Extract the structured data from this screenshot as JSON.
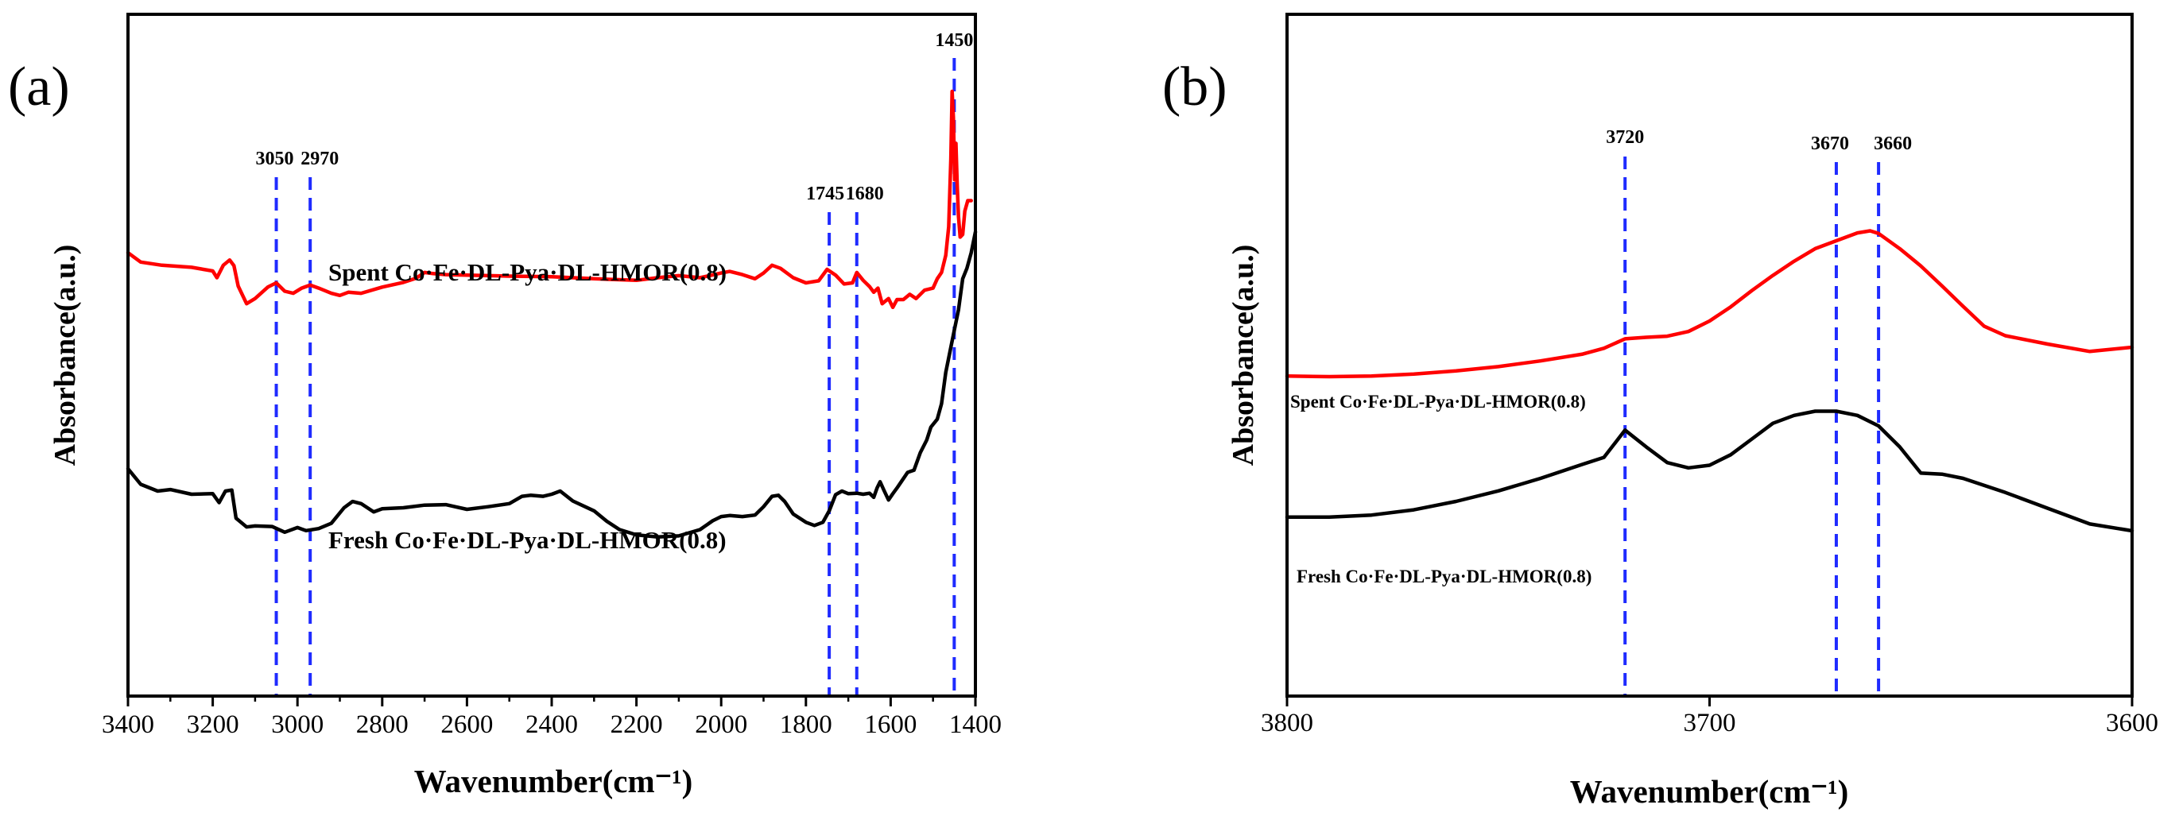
{
  "chart_data": [
    {
      "panel": "(a)",
      "type": "line",
      "title": "",
      "xlabel": "Wavenumber(cm⁻¹)",
      "ylabel": "Absorbance(a.u.)",
      "xlim": [
        3400,
        1400
      ],
      "ylim": [
        0,
        1
      ],
      "x_reversed": true,
      "xticks": [
        3400,
        3200,
        3000,
        2800,
        2600,
        2400,
        2200,
        2000,
        1800,
        1600,
        1400
      ],
      "grid": false,
      "peak_markers": [
        3050,
        2970,
        1745,
        1680,
        1450
      ],
      "series": [
        {
          "name": "Spent Co·Fe·DL-Pya·DL-HMOR(0.8)",
          "color": "#ff0000",
          "points": [
            [
              3400,
              0.69
            ],
            [
              3370,
              0.672
            ],
            [
              3320,
              0.666
            ],
            [
              3250,
              0.662
            ],
            [
              3200,
              0.655
            ],
            [
              3190,
              0.642
            ],
            [
              3175,
              0.666
            ],
            [
              3160,
              0.676
            ],
            [
              3150,
              0.665
            ],
            [
              3140,
              0.626
            ],
            [
              3120,
              0.592
            ],
            [
              3100,
              0.602
            ],
            [
              3070,
              0.624
            ],
            [
              3050,
              0.632
            ],
            [
              3030,
              0.616
            ],
            [
              3010,
              0.612
            ],
            [
              2990,
              0.622
            ],
            [
              2970,
              0.628
            ],
            [
              2950,
              0.622
            ],
            [
              2920,
              0.612
            ],
            [
              2900,
              0.608
            ],
            [
              2880,
              0.614
            ],
            [
              2850,
              0.612
            ],
            [
              2800,
              0.624
            ],
            [
              2750,
              0.633
            ],
            [
              2720,
              0.641
            ],
            [
              2700,
              0.652
            ],
            [
              2680,
              0.65
            ],
            [
              2650,
              0.648
            ],
            [
              2600,
              0.647
            ],
            [
              2500,
              0.645
            ],
            [
              2400,
              0.644
            ],
            [
              2300,
              0.64
            ],
            [
              2200,
              0.637
            ],
            [
              2150,
              0.642
            ],
            [
              2100,
              0.646
            ],
            [
              2050,
              0.642
            ],
            [
              2000,
              0.651
            ],
            [
              1980,
              0.654
            ],
            [
              1950,
              0.648
            ],
            [
              1920,
              0.64
            ],
            [
              1900,
              0.651
            ],
            [
              1880,
              0.666
            ],
            [
              1860,
              0.66
            ],
            [
              1830,
              0.642
            ],
            [
              1800,
              0.632
            ],
            [
              1770,
              0.636
            ],
            [
              1750,
              0.658
            ],
            [
              1730,
              0.647
            ],
            [
              1710,
              0.63
            ],
            [
              1690,
              0.632
            ],
            [
              1680,
              0.652
            ],
            [
              1665,
              0.637
            ],
            [
              1650,
              0.625
            ],
            [
              1640,
              0.614
            ],
            [
              1630,
              0.622
            ],
            [
              1620,
              0.592
            ],
            [
              1605,
              0.602
            ],
            [
              1595,
              0.585
            ],
            [
              1585,
              0.6
            ],
            [
              1570,
              0.6
            ],
            [
              1555,
              0.61
            ],
            [
              1540,
              0.602
            ],
            [
              1520,
              0.618
            ],
            [
              1500,
              0.622
            ],
            [
              1490,
              0.64
            ],
            [
              1480,
              0.652
            ],
            [
              1470,
              0.685
            ],
            [
              1463,
              0.74
            ],
            [
              1458,
              0.87
            ],
            [
              1455,
              1.0
            ],
            [
              1452,
              0.95
            ],
            [
              1449,
              0.83
            ],
            [
              1446,
              0.9
            ],
            [
              1443,
              0.82
            ],
            [
              1440,
              0.76
            ],
            [
              1436,
              0.72
            ],
            [
              1430,
              0.725
            ],
            [
              1425,
              0.77
            ],
            [
              1418,
              0.79
            ],
            [
              1410,
              0.79
            ]
          ]
        },
        {
          "name": "Fresh Co·Fe·DL-Pya·DL-HMOR(0.8)",
          "color": "#000000",
          "points": [
            [
              3400,
              0.275
            ],
            [
              3370,
              0.245
            ],
            [
              3330,
              0.232
            ],
            [
              3300,
              0.235
            ],
            [
              3250,
              0.226
            ],
            [
              3200,
              0.227
            ],
            [
              3185,
              0.21
            ],
            [
              3170,
              0.232
            ],
            [
              3155,
              0.234
            ],
            [
              3145,
              0.18
            ],
            [
              3120,
              0.163
            ],
            [
              3100,
              0.165
            ],
            [
              3060,
              0.164
            ],
            [
              3030,
              0.153
            ],
            [
              3000,
              0.162
            ],
            [
              2980,
              0.156
            ],
            [
              2950,
              0.16
            ],
            [
              2920,
              0.17
            ],
            [
              2890,
              0.2
            ],
            [
              2870,
              0.212
            ],
            [
              2850,
              0.208
            ],
            [
              2820,
              0.192
            ],
            [
              2800,
              0.198
            ],
            [
              2750,
              0.2
            ],
            [
              2700,
              0.205
            ],
            [
              2650,
              0.206
            ],
            [
              2600,
              0.197
            ],
            [
              2550,
              0.202
            ],
            [
              2500,
              0.208
            ],
            [
              2470,
              0.222
            ],
            [
              2450,
              0.224
            ],
            [
              2420,
              0.222
            ],
            [
              2400,
              0.226
            ],
            [
              2380,
              0.232
            ],
            [
              2350,
              0.213
            ],
            [
              2300,
              0.194
            ],
            [
              2270,
              0.174
            ],
            [
              2240,
              0.158
            ],
            [
              2200,
              0.148
            ],
            [
              2150,
              0.144
            ],
            [
              2100,
              0.146
            ],
            [
              2050,
              0.158
            ],
            [
              2020,
              0.175
            ],
            [
              2000,
              0.183
            ],
            [
              1980,
              0.185
            ],
            [
              1950,
              0.183
            ],
            [
              1920,
              0.186
            ],
            [
              1900,
              0.202
            ],
            [
              1880,
              0.222
            ],
            [
              1865,
              0.224
            ],
            [
              1850,
              0.212
            ],
            [
              1830,
              0.188
            ],
            [
              1800,
              0.172
            ],
            [
              1780,
              0.166
            ],
            [
              1760,
              0.172
            ],
            [
              1745,
              0.194
            ],
            [
              1730,
              0.225
            ],
            [
              1715,
              0.232
            ],
            [
              1700,
              0.227
            ],
            [
              1680,
              0.228
            ],
            [
              1665,
              0.226
            ],
            [
              1650,
              0.228
            ],
            [
              1640,
              0.22
            ],
            [
              1632,
              0.238
            ],
            [
              1625,
              0.25
            ],
            [
              1615,
              0.232
            ],
            [
              1605,
              0.215
            ],
            [
              1595,
              0.227
            ],
            [
              1585,
              0.238
            ],
            [
              1575,
              0.25
            ],
            [
              1560,
              0.268
            ],
            [
              1545,
              0.272
            ],
            [
              1530,
              0.306
            ],
            [
              1515,
              0.33
            ],
            [
              1505,
              0.355
            ],
            [
              1490,
              0.37
            ],
            [
              1480,
              0.4
            ],
            [
              1470,
              0.46
            ],
            [
              1460,
              0.5
            ],
            [
              1450,
              0.54
            ],
            [
              1440,
              0.58
            ],
            [
              1430,
              0.64
            ],
            [
              1420,
              0.66
            ],
            [
              1410,
              0.69
            ],
            [
              1400,
              0.73
            ]
          ]
        }
      ]
    },
    {
      "panel": "(b)",
      "type": "line",
      "title": "",
      "xlabel": "Wavenumber(cm⁻¹)",
      "ylabel": "Absorbance(a.u.)",
      "xlim": [
        3800,
        3600
      ],
      "ylim": [
        0,
        1
      ],
      "x_reversed": true,
      "xticks": [
        3800,
        3700,
        3600
      ],
      "grid": false,
      "peak_markers": [
        3720,
        3670,
        3660
      ],
      "series": [
        {
          "name": "Spent Co·Fe·DL-Pya·DL-HMOR(0.8)",
          "color": "#ff0000",
          "points": [
            [
              3800,
              0.495
            ],
            [
              3790,
              0.494
            ],
            [
              3780,
              0.495
            ],
            [
              3770,
              0.499
            ],
            [
              3760,
              0.505
            ],
            [
              3750,
              0.513
            ],
            [
              3740,
              0.524
            ],
            [
              3730,
              0.537
            ],
            [
              3725,
              0.548
            ],
            [
              3720,
              0.566
            ],
            [
              3715,
              0.569
            ],
            [
              3710,
              0.571
            ],
            [
              3705,
              0.58
            ],
            [
              3700,
              0.6
            ],
            [
              3695,
              0.627
            ],
            [
              3690,
              0.658
            ],
            [
              3685,
              0.687
            ],
            [
              3680,
              0.714
            ],
            [
              3675,
              0.738
            ],
            [
              3670,
              0.753
            ],
            [
              3665,
              0.768
            ],
            [
              3662,
              0.772
            ],
            [
              3660,
              0.767
            ],
            [
              3655,
              0.738
            ],
            [
              3650,
              0.705
            ],
            [
              3645,
              0.667
            ],
            [
              3640,
              0.628
            ],
            [
              3635,
              0.59
            ],
            [
              3630,
              0.572
            ],
            [
              3620,
              0.556
            ],
            [
              3610,
              0.542
            ],
            [
              3600,
              0.55
            ]
          ]
        },
        {
          "name": "Fresh Co·Fe·DL-Pya·DL-HMOR(0.8)",
          "color": "#000000",
          "points": [
            [
              3800,
              0.226
            ],
            [
              3790,
              0.226
            ],
            [
              3780,
              0.23
            ],
            [
              3770,
              0.24
            ],
            [
              3760,
              0.256
            ],
            [
              3750,
              0.276
            ],
            [
              3740,
              0.3
            ],
            [
              3730,
              0.327
            ],
            [
              3725,
              0.34
            ],
            [
              3720,
              0.392
            ],
            [
              3715,
              0.36
            ],
            [
              3710,
              0.33
            ],
            [
              3705,
              0.32
            ],
            [
              3700,
              0.325
            ],
            [
              3695,
              0.345
            ],
            [
              3690,
              0.375
            ],
            [
              3685,
              0.405
            ],
            [
              3680,
              0.42
            ],
            [
              3675,
              0.428
            ],
            [
              3670,
              0.428
            ],
            [
              3665,
              0.42
            ],
            [
              3660,
              0.4
            ],
            [
              3655,
              0.36
            ],
            [
              3650,
              0.31
            ],
            [
              3645,
              0.308
            ],
            [
              3640,
              0.3
            ],
            [
              3630,
              0.273
            ],
            [
              3620,
              0.243
            ],
            [
              3610,
              0.213
            ],
            [
              3600,
              0.2
            ]
          ]
        }
      ]
    }
  ]
}
